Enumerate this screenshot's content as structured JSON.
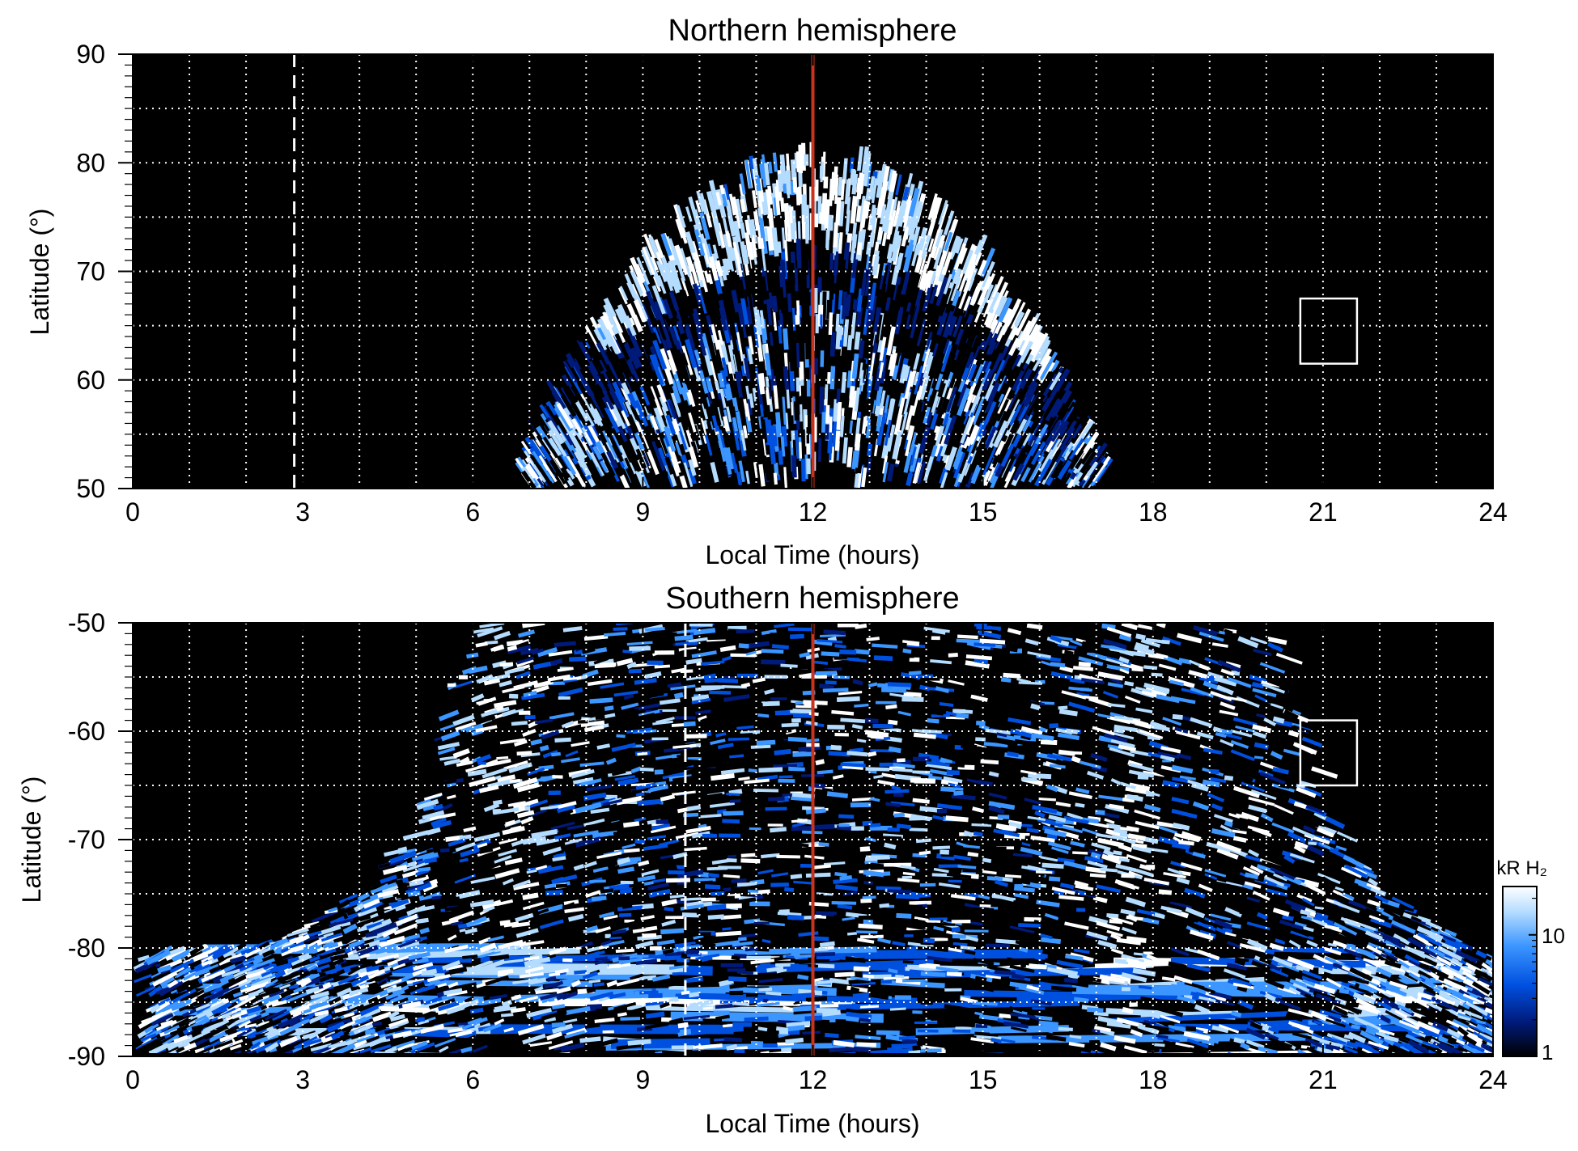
{
  "chart_data": [
    {
      "type": "heatmap",
      "title": "Northern hemisphere",
      "xlabel": "Local Time (hours)",
      "ylabel": "Latitude (°)",
      "xlim": [
        0,
        24
      ],
      "ylim": [
        50,
        90
      ],
      "xticks": [
        "0",
        "3",
        "6",
        "9",
        "12",
        "15",
        "18",
        "21",
        "24"
      ],
      "yticks": [
        "50",
        "60",
        "70",
        "80",
        "90"
      ],
      "grid": true,
      "background": "#000000",
      "emission_envelope": {
        "lt": [
          7.0,
          7.5,
          8.0,
          8.5,
          9.0,
          9.5,
          10.0,
          10.5,
          11.0,
          11.5,
          12.0,
          12.5,
          13.0,
          13.5,
          14.0,
          14.5,
          15.0,
          15.5,
          16.0,
          16.5,
          17.0
        ],
        "max_lat": [
          50,
          56,
          62,
          66,
          70,
          73,
          75.5,
          77.5,
          79,
          79.8,
          80,
          79.8,
          79,
          77.5,
          75.5,
          73,
          70,
          66,
          62,
          56,
          50
        ]
      },
      "bright_oval": {
        "lt": [
          8.6,
          9.0,
          9.5,
          10.0,
          10.5,
          11.0,
          11.5,
          12.0,
          12.5,
          13.0,
          13.5,
          14.0,
          14.5,
          15.0,
          15.5,
          16.0
        ],
        "lat": [
          66,
          68.5,
          70.5,
          71.5,
          72.5,
          73.5,
          74.5,
          76.5,
          74.5,
          73.5,
          72.5,
          71.5,
          70.5,
          68.5,
          66,
          63
        ]
      },
      "dashed_line_lt": 2.85,
      "box": {
        "lt": [
          20.6,
          21.6
        ],
        "lat": [
          61.5,
          67.5
        ]
      },
      "reference_line": {
        "lt": 12,
        "color": "#c8331e"
      }
    },
    {
      "type": "heatmap",
      "title": "Southern hemisphere",
      "xlabel": "Local Time (hours)",
      "ylabel": "Latitude (°)",
      "xlim": [
        0,
        24
      ],
      "ylim": [
        -90,
        -50
      ],
      "xticks": [
        "0",
        "3",
        "6",
        "9",
        "12",
        "15",
        "18",
        "21",
        "24"
      ],
      "yticks": [
        "-90",
        "-80",
        "-70",
        "-60",
        "-50"
      ],
      "grid": true,
      "background": "#000000",
      "emission_envelope": {
        "lt": [
          0,
          2,
          3,
          4,
          5,
          5.5,
          6.0,
          20.0,
          20.5,
          21,
          22,
          24
        ],
        "edge_lat": [
          -81,
          -80,
          -78,
          -74.5,
          -67,
          -56,
          -50,
          -50,
          -56,
          -67,
          -74.5,
          -81
        ]
      },
      "bright_bands": [
        {
          "lt": [
            6.2,
            6.3,
            6.4,
            6.5,
            6.6,
            6.6,
            6.7
          ],
          "lat": [
            -50,
            -55,
            -60,
            -65,
            -70,
            -75,
            -78
          ]
        },
        {
          "lt": [
            17.8,
            17.7,
            17.6,
            17.5,
            17.4,
            17.4,
            17.3
          ],
          "lat": [
            -50,
            -55,
            -60,
            -65,
            -70,
            -75,
            -78
          ]
        }
      ],
      "dashed_line_lt": 9.75,
      "box": {
        "lt": [
          20.6,
          21.6
        ],
        "lat": [
          -65,
          -59
        ]
      },
      "reference_line": {
        "lt": 12,
        "color": "#c8331e"
      }
    }
  ],
  "colorbar": {
    "label": "kR H₂",
    "scale": "log",
    "range": [
      1,
      25
    ],
    "ticks": [
      "1",
      "10"
    ],
    "colors": [
      "#000000",
      "#001a7a",
      "#0050e0",
      "#3c96ff",
      "#b4dcff",
      "#ffffff"
    ]
  }
}
